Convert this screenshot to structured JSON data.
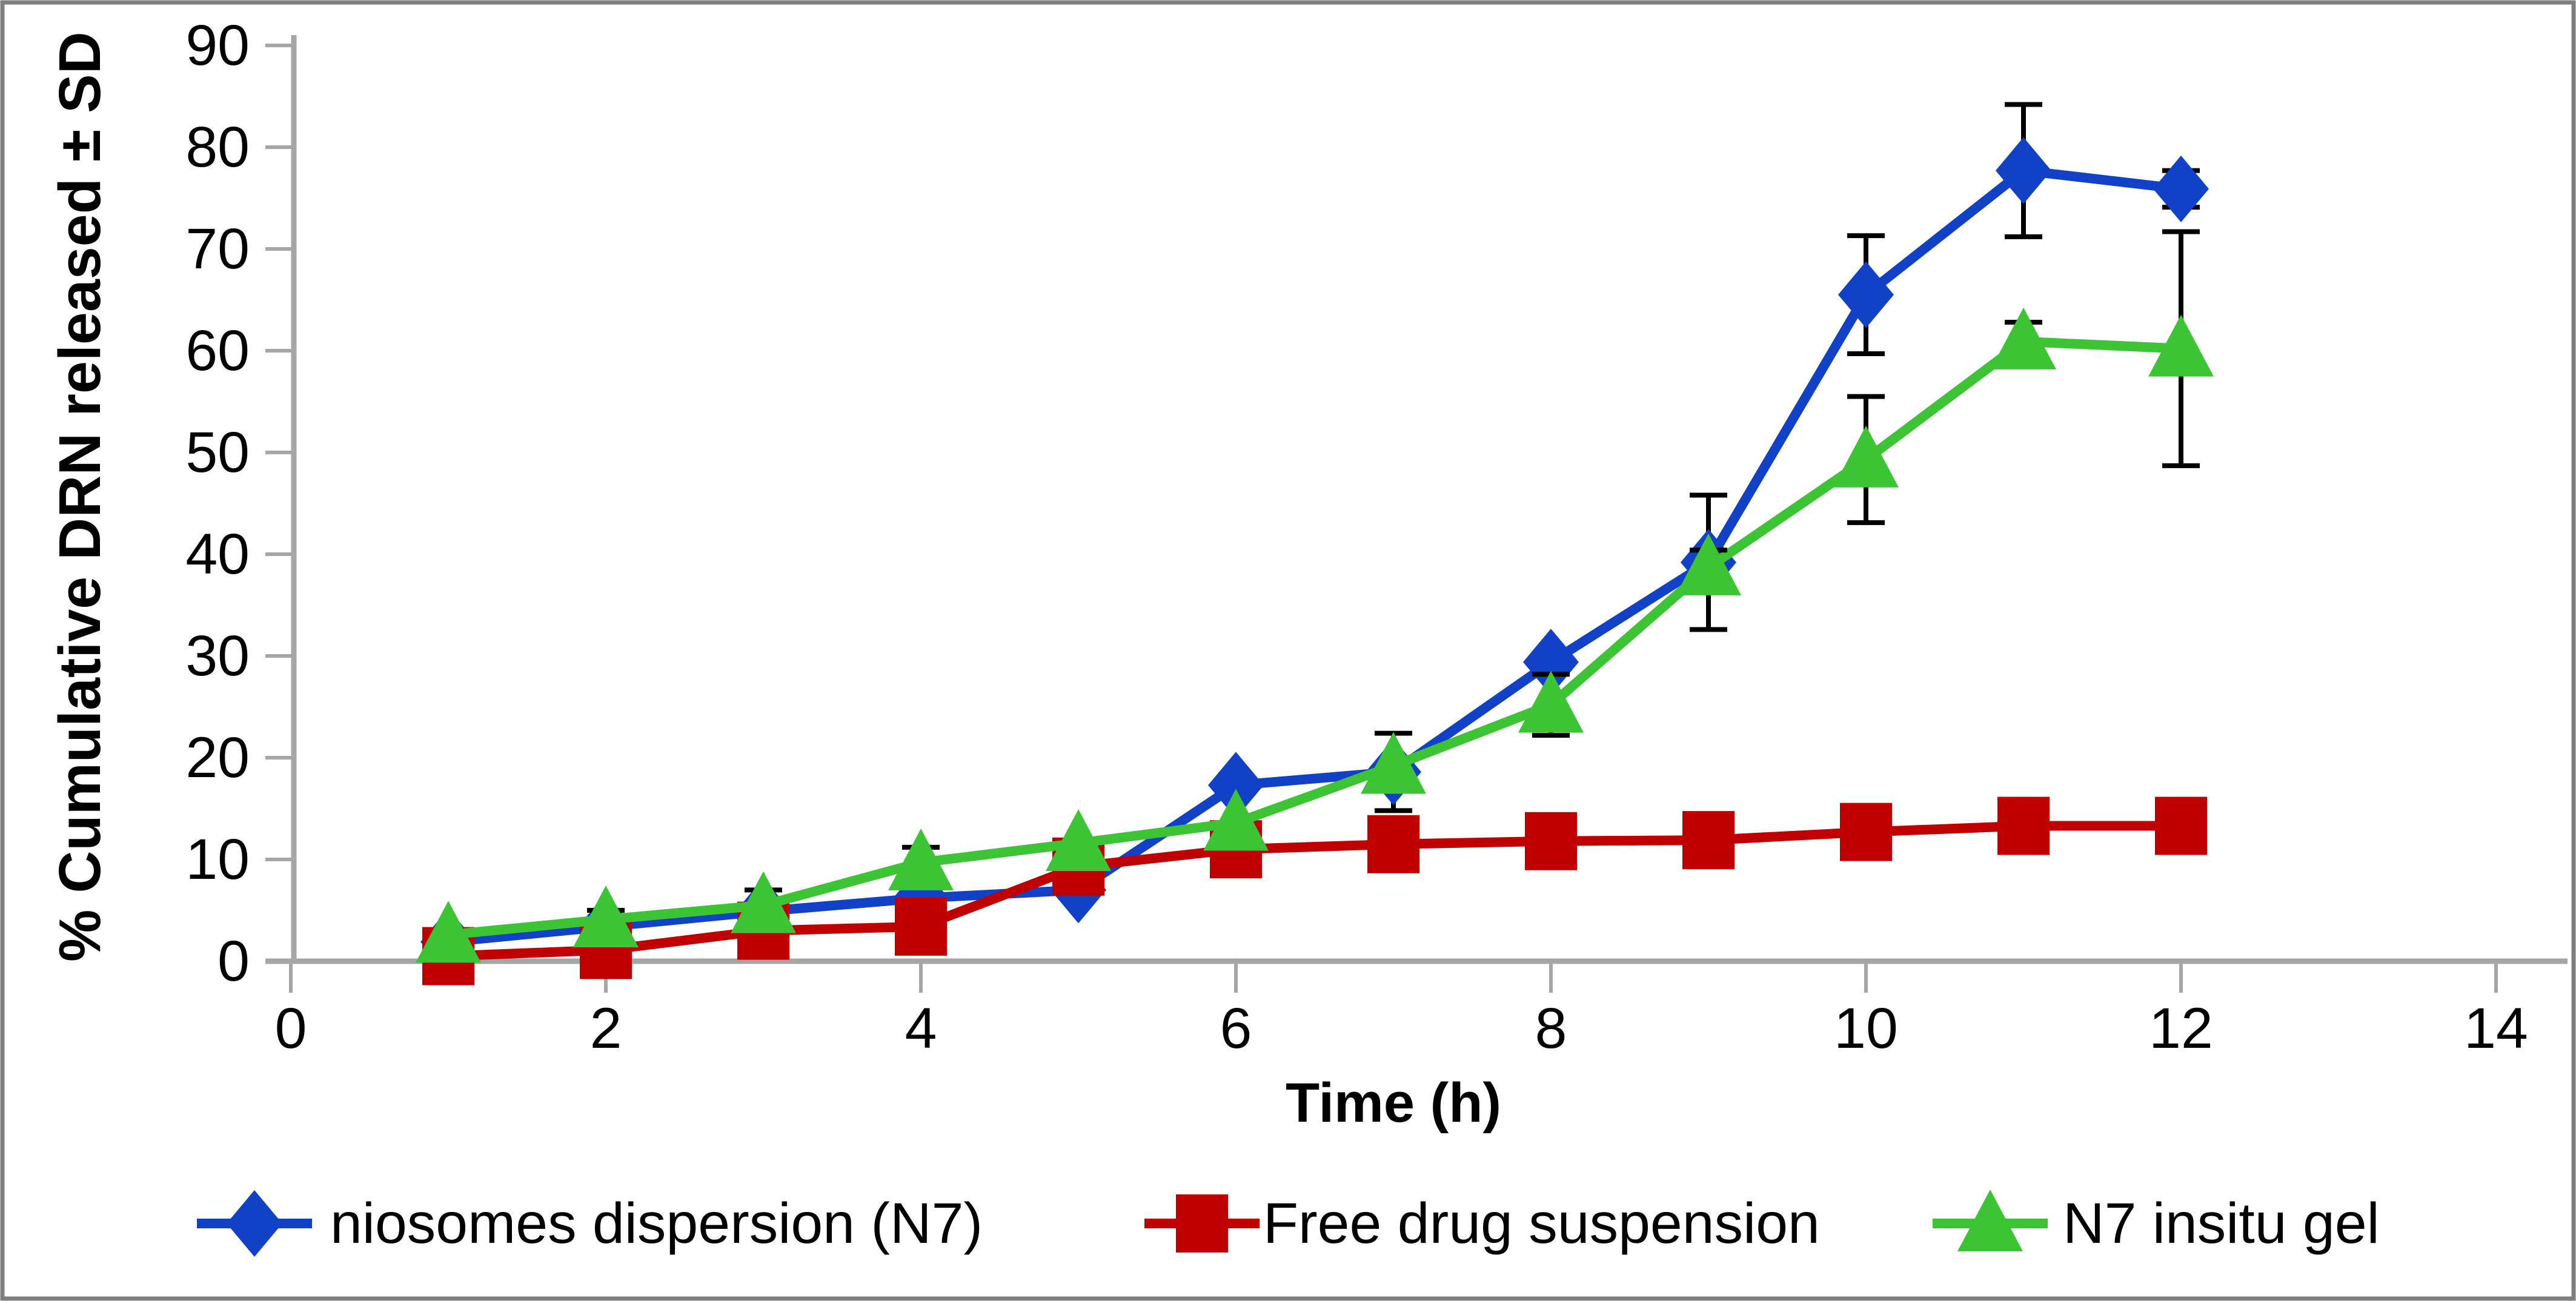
{
  "chart_data": {
    "type": "line",
    "title": "",
    "xlabel": "Time (h)",
    "ylabel": "% Cumulative DRN released ± SD",
    "x": [
      1,
      2,
      3,
      4,
      5,
      6,
      7,
      8,
      9,
      10,
      11,
      12
    ],
    "xlim": [
      0,
      14
    ],
    "ylim": [
      0,
      90
    ],
    "x_ticks": [
      0,
      2,
      4,
      6,
      8,
      10,
      12,
      14
    ],
    "y_ticks": [
      0,
      10,
      20,
      30,
      40,
      50,
      60,
      70,
      80,
      90
    ],
    "grid": false,
    "legend_position": "bottom",
    "series": [
      {
        "name": "niosomes dispersion (N7)",
        "marker": "diamond",
        "color": "#1141C6",
        "values": [
          1.9,
          3.4,
          4.9,
          6.2,
          7.0,
          17.3,
          18.6,
          29.4,
          39.2,
          65.5,
          77.7,
          75.9
        ],
        "errors": [
          0,
          0,
          0,
          0,
          0,
          0,
          3.8,
          0,
          6.6,
          5.8,
          6.5,
          1.8
        ]
      },
      {
        "name": "Free drug suspension",
        "marker": "square",
        "color": "#C00000",
        "values": [
          0.5,
          1.1,
          3.0,
          3.4,
          9.3,
          11.0,
          11.5,
          11.8,
          11.9,
          12.7,
          13.3,
          13.3
        ],
        "errors": [
          0,
          0,
          0,
          0,
          0,
          0,
          0,
          0,
          0,
          0,
          0,
          0
        ]
      },
      {
        "name": "N7 insitu gel",
        "marker": "triangle",
        "color": "#3CC435",
        "values": [
          2.6,
          4.1,
          5.5,
          9.7,
          11.6,
          13.6,
          19.2,
          25.2,
          38.7,
          49.3,
          60.9,
          60.2
        ],
        "errors": [
          0,
          0.9,
          1.5,
          1.5,
          0,
          0,
          0,
          3.0,
          1.7,
          6.2,
          1.9,
          11.5
        ]
      }
    ],
    "colors": {
      "axis": "#A6A6A6",
      "error_bar": "#000000",
      "frame_border": "#7F7F7F",
      "text": "#000000"
    }
  }
}
